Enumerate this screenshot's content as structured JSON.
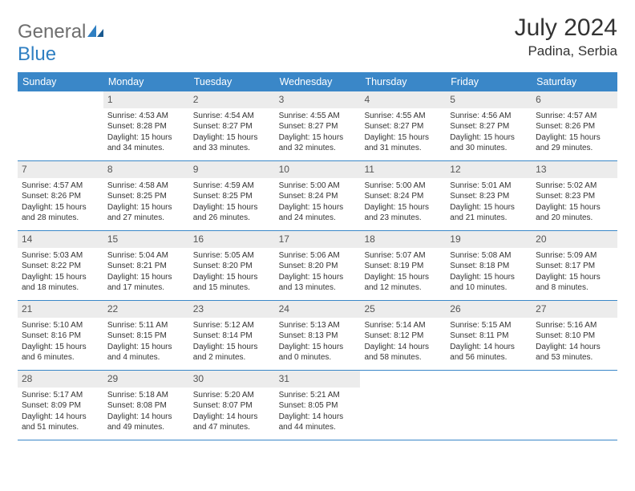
{
  "logo": {
    "general": "General",
    "blue": "Blue",
    "accent": "#2f7fc2",
    "grey": "#6e6e6e"
  },
  "title": "July 2024",
  "location": "Padina, Serbia",
  "header_bg": "#3a87c8",
  "daynum_bg": "#ececec",
  "weekdays": [
    "Sunday",
    "Monday",
    "Tuesday",
    "Wednesday",
    "Thursday",
    "Friday",
    "Saturday"
  ],
  "weeks": [
    [
      null,
      {
        "n": "1",
        "sr": "4:53 AM",
        "ss": "8:28 PM",
        "h": "15",
        "m": "34"
      },
      {
        "n": "2",
        "sr": "4:54 AM",
        "ss": "8:27 PM",
        "h": "15",
        "m": "33"
      },
      {
        "n": "3",
        "sr": "4:55 AM",
        "ss": "8:27 PM",
        "h": "15",
        "m": "32"
      },
      {
        "n": "4",
        "sr": "4:55 AM",
        "ss": "8:27 PM",
        "h": "15",
        "m": "31"
      },
      {
        "n": "5",
        "sr": "4:56 AM",
        "ss": "8:27 PM",
        "h": "15",
        "m": "30"
      },
      {
        "n": "6",
        "sr": "4:57 AM",
        "ss": "8:26 PM",
        "h": "15",
        "m": "29"
      }
    ],
    [
      {
        "n": "7",
        "sr": "4:57 AM",
        "ss": "8:26 PM",
        "h": "15",
        "m": "28"
      },
      {
        "n": "8",
        "sr": "4:58 AM",
        "ss": "8:25 PM",
        "h": "15",
        "m": "27"
      },
      {
        "n": "9",
        "sr": "4:59 AM",
        "ss": "8:25 PM",
        "h": "15",
        "m": "26"
      },
      {
        "n": "10",
        "sr": "5:00 AM",
        "ss": "8:24 PM",
        "h": "15",
        "m": "24"
      },
      {
        "n": "11",
        "sr": "5:00 AM",
        "ss": "8:24 PM",
        "h": "15",
        "m": "23"
      },
      {
        "n": "12",
        "sr": "5:01 AM",
        "ss": "8:23 PM",
        "h": "15",
        "m": "21"
      },
      {
        "n": "13",
        "sr": "5:02 AM",
        "ss": "8:23 PM",
        "h": "15",
        "m": "20"
      }
    ],
    [
      {
        "n": "14",
        "sr": "5:03 AM",
        "ss": "8:22 PM",
        "h": "15",
        "m": "18"
      },
      {
        "n": "15",
        "sr": "5:04 AM",
        "ss": "8:21 PM",
        "h": "15",
        "m": "17"
      },
      {
        "n": "16",
        "sr": "5:05 AM",
        "ss": "8:20 PM",
        "h": "15",
        "m": "15"
      },
      {
        "n": "17",
        "sr": "5:06 AM",
        "ss": "8:20 PM",
        "h": "15",
        "m": "13"
      },
      {
        "n": "18",
        "sr": "5:07 AM",
        "ss": "8:19 PM",
        "h": "15",
        "m": "12"
      },
      {
        "n": "19",
        "sr": "5:08 AM",
        "ss": "8:18 PM",
        "h": "15",
        "m": "10"
      },
      {
        "n": "20",
        "sr": "5:09 AM",
        "ss": "8:17 PM",
        "h": "15",
        "m": "8"
      }
    ],
    [
      {
        "n": "21",
        "sr": "5:10 AM",
        "ss": "8:16 PM",
        "h": "15",
        "m": "6"
      },
      {
        "n": "22",
        "sr": "5:11 AM",
        "ss": "8:15 PM",
        "h": "15",
        "m": "4"
      },
      {
        "n": "23",
        "sr": "5:12 AM",
        "ss": "8:14 PM",
        "h": "15",
        "m": "2"
      },
      {
        "n": "24",
        "sr": "5:13 AM",
        "ss": "8:13 PM",
        "h": "15",
        "m": "0"
      },
      {
        "n": "25",
        "sr": "5:14 AM",
        "ss": "8:12 PM",
        "h": "14",
        "m": "58"
      },
      {
        "n": "26",
        "sr": "5:15 AM",
        "ss": "8:11 PM",
        "h": "14",
        "m": "56"
      },
      {
        "n": "27",
        "sr": "5:16 AM",
        "ss": "8:10 PM",
        "h": "14",
        "m": "53"
      }
    ],
    [
      {
        "n": "28",
        "sr": "5:17 AM",
        "ss": "8:09 PM",
        "h": "14",
        "m": "51"
      },
      {
        "n": "29",
        "sr": "5:18 AM",
        "ss": "8:08 PM",
        "h": "14",
        "m": "49"
      },
      {
        "n": "30",
        "sr": "5:20 AM",
        "ss": "8:07 PM",
        "h": "14",
        "m": "47"
      },
      {
        "n": "31",
        "sr": "5:21 AM",
        "ss": "8:05 PM",
        "h": "14",
        "m": "44"
      },
      null,
      null,
      null
    ]
  ],
  "labels": {
    "sunrise": "Sunrise:",
    "sunset": "Sunset:",
    "daylight": "Daylight:",
    "hours": "hours",
    "and": "and",
    "minutes": "minutes."
  }
}
